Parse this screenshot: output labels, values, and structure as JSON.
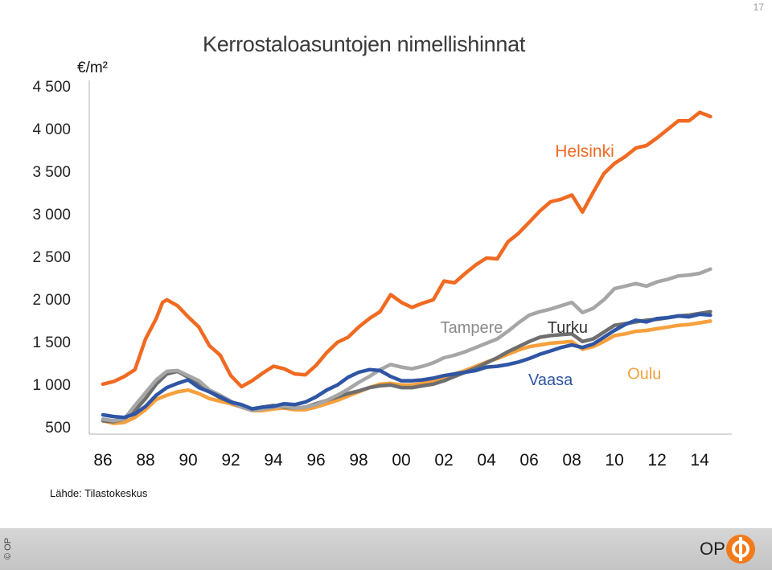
{
  "slide_number": "17",
  "footer": {
    "copyright": "© OP",
    "logo_text": "OP"
  },
  "colors": {
    "helsinki": "#f06a22",
    "tampere": "#a6a6a6",
    "turku": "#6e6e6e",
    "vaasa": "#2f55a4",
    "oulu": "#f7a03d",
    "footer_bg": "#cccccc",
    "logo_orange": "#f27a1a"
  },
  "chart_data": {
    "type": "line",
    "title": "Kerrostaloasuntojen nimellishinnat",
    "unit_label": "€/m²",
    "source": "Lähde: Tilastokeskus",
    "ylim": [
      500,
      4500
    ],
    "y_ticks": [
      "500",
      "1 000",
      "1 500",
      "2 000",
      "2 500",
      "3 000",
      "3 500",
      "4 000",
      "4 500"
    ],
    "y_tick_values": [
      500,
      1000,
      1500,
      2000,
      2500,
      3000,
      3500,
      4000,
      4500
    ],
    "xlim": [
      1986,
      2014.75
    ],
    "x_ticks": [
      "86",
      "88",
      "90",
      "92",
      "94",
      "96",
      "98",
      "00",
      "02",
      "04",
      "06",
      "08",
      "10",
      "12",
      "14"
    ],
    "x_tick_values": [
      1986,
      1988,
      1990,
      1992,
      1994,
      1996,
      1998,
      2000,
      2002,
      2004,
      2006,
      2008,
      2010,
      2012,
      2014
    ],
    "grid": false,
    "legend": "inline labels",
    "series": [
      {
        "name": "Helsinki",
        "color_key": "helsinki",
        "label_pos": [
          2008.6,
          3700
        ],
        "points": [
          [
            1986,
            1030
          ],
          [
            1986.5,
            1060
          ],
          [
            1987,
            1120
          ],
          [
            1987.5,
            1200
          ],
          [
            1988,
            1560
          ],
          [
            1988.5,
            1800
          ],
          [
            1988.8,
            1990
          ],
          [
            1989,
            2020
          ],
          [
            1989.5,
            1950
          ],
          [
            1990,
            1820
          ],
          [
            1990.5,
            1700
          ],
          [
            1991,
            1480
          ],
          [
            1991.5,
            1370
          ],
          [
            1992,
            1130
          ],
          [
            1992.5,
            1000
          ],
          [
            1993,
            1070
          ],
          [
            1993.5,
            1160
          ],
          [
            1994,
            1240
          ],
          [
            1994.5,
            1210
          ],
          [
            1995,
            1150
          ],
          [
            1995.5,
            1140
          ],
          [
            1996,
            1250
          ],
          [
            1996.5,
            1400
          ],
          [
            1997,
            1520
          ],
          [
            1997.5,
            1580
          ],
          [
            1998,
            1700
          ],
          [
            1998.5,
            1800
          ],
          [
            1999,
            1880
          ],
          [
            1999.5,
            2080
          ],
          [
            2000,
            1990
          ],
          [
            2000.5,
            1930
          ],
          [
            2001,
            1980
          ],
          [
            2001.5,
            2020
          ],
          [
            2002,
            2240
          ],
          [
            2002.5,
            2220
          ],
          [
            2003,
            2330
          ],
          [
            2003.5,
            2430
          ],
          [
            2004,
            2510
          ],
          [
            2004.5,
            2500
          ],
          [
            2005,
            2700
          ],
          [
            2005.5,
            2800
          ],
          [
            2006,
            2930
          ],
          [
            2006.5,
            3060
          ],
          [
            2007,
            3170
          ],
          [
            2007.5,
            3200
          ],
          [
            2008,
            3250
          ],
          [
            2008.5,
            3050
          ],
          [
            2009,
            3280
          ],
          [
            2009.5,
            3500
          ],
          [
            2010,
            3620
          ],
          [
            2010.5,
            3700
          ],
          [
            2011,
            3800
          ],
          [
            2011.5,
            3830
          ],
          [
            2012,
            3920
          ],
          [
            2012.5,
            4020
          ],
          [
            2013,
            4120
          ],
          [
            2013.5,
            4120
          ],
          [
            2014,
            4220
          ],
          [
            2014.5,
            4170
          ]
        ]
      },
      {
        "name": "Tampere",
        "color_key": "tampere",
        "label_pos": [
          2003.3,
          1630
        ],
        "points": [
          [
            1986,
            620
          ],
          [
            1986.5,
            600
          ],
          [
            1987,
            620
          ],
          [
            1987.5,
            780
          ],
          [
            1988,
            930
          ],
          [
            1988.5,
            1080
          ],
          [
            1989,
            1180
          ],
          [
            1989.5,
            1190
          ],
          [
            1990,
            1130
          ],
          [
            1990.5,
            1070
          ],
          [
            1991,
            960
          ],
          [
            1991.5,
            900
          ],
          [
            1992,
            830
          ],
          [
            1992.5,
            760
          ],
          [
            1993,
            720
          ],
          [
            1993.5,
            740
          ],
          [
            1994,
            760
          ],
          [
            1994.5,
            770
          ],
          [
            1995,
            750
          ],
          [
            1995.5,
            760
          ],
          [
            1996,
            790
          ],
          [
            1996.5,
            840
          ],
          [
            1997,
            900
          ],
          [
            1997.5,
            970
          ],
          [
            1998,
            1050
          ],
          [
            1998.5,
            1120
          ],
          [
            1999,
            1200
          ],
          [
            1999.5,
            1260
          ],
          [
            2000,
            1230
          ],
          [
            2000.5,
            1210
          ],
          [
            2001,
            1240
          ],
          [
            2001.5,
            1280
          ],
          [
            2002,
            1340
          ],
          [
            2002.5,
            1370
          ],
          [
            2003,
            1410
          ],
          [
            2003.5,
            1460
          ],
          [
            2004,
            1510
          ],
          [
            2004.5,
            1560
          ],
          [
            2005,
            1650
          ],
          [
            2005.5,
            1750
          ],
          [
            2006,
            1840
          ],
          [
            2006.5,
            1880
          ],
          [
            2007,
            1910
          ],
          [
            2007.5,
            1950
          ],
          [
            2008,
            1990
          ],
          [
            2008.5,
            1870
          ],
          [
            2009,
            1920
          ],
          [
            2009.5,
            2020
          ],
          [
            2010,
            2150
          ],
          [
            2010.5,
            2180
          ],
          [
            2011,
            2210
          ],
          [
            2011.5,
            2180
          ],
          [
            2012,
            2230
          ],
          [
            2012.5,
            2260
          ],
          [
            2013,
            2300
          ],
          [
            2013.5,
            2310
          ],
          [
            2014,
            2330
          ],
          [
            2014.5,
            2380
          ]
        ]
      },
      {
        "name": "Turku",
        "color_key": "turku",
        "label_pos": [
          2007.8,
          1630
        ],
        "points": [
          [
            1986,
            600
          ],
          [
            1986.5,
            590
          ],
          [
            1987,
            620
          ],
          [
            1987.5,
            720
          ],
          [
            1988,
            860
          ],
          [
            1988.5,
            1030
          ],
          [
            1989,
            1150
          ],
          [
            1989.5,
            1180
          ],
          [
            1990,
            1110
          ],
          [
            1990.5,
            1040
          ],
          [
            1991,
            940
          ],
          [
            1991.5,
            870
          ],
          [
            1992,
            820
          ],
          [
            1992.5,
            760
          ],
          [
            1993,
            740
          ],
          [
            1993.5,
            760
          ],
          [
            1994,
            780
          ],
          [
            1994.5,
            760
          ],
          [
            1995,
            750
          ],
          [
            1995.5,
            760
          ],
          [
            1996,
            800
          ],
          [
            1996.5,
            840
          ],
          [
            1997,
            880
          ],
          [
            1997.5,
            920
          ],
          [
            1998,
            950
          ],
          [
            1998.5,
            990
          ],
          [
            1999,
            1010
          ],
          [
            1999.5,
            1020
          ],
          [
            2000,
            990
          ],
          [
            2000.5,
            990
          ],
          [
            2001,
            1010
          ],
          [
            2001.5,
            1030
          ],
          [
            2002,
            1070
          ],
          [
            2002.5,
            1120
          ],
          [
            2003,
            1170
          ],
          [
            2003.5,
            1220
          ],
          [
            2004,
            1280
          ],
          [
            2004.5,
            1340
          ],
          [
            2005,
            1410
          ],
          [
            2005.5,
            1470
          ],
          [
            2006,
            1530
          ],
          [
            2006.5,
            1580
          ],
          [
            2007,
            1600
          ],
          [
            2007.5,
            1610
          ],
          [
            2008,
            1620
          ],
          [
            2008.5,
            1530
          ],
          [
            2009,
            1560
          ],
          [
            2009.5,
            1640
          ],
          [
            2010,
            1720
          ],
          [
            2010.5,
            1740
          ],
          [
            2011,
            1760
          ],
          [
            2011.5,
            1780
          ],
          [
            2012,
            1790
          ],
          [
            2012.5,
            1810
          ],
          [
            2013,
            1830
          ],
          [
            2013.5,
            1840
          ],
          [
            2014,
            1860
          ],
          [
            2014.5,
            1880
          ]
        ]
      },
      {
        "name": "Vaasa",
        "color_key": "vaasa",
        "label_pos": [
          2007.0,
          1020
        ],
        "points": [
          [
            1986,
            670
          ],
          [
            1986.5,
            650
          ],
          [
            1987,
            640
          ],
          [
            1987.5,
            680
          ],
          [
            1988,
            770
          ],
          [
            1988.5,
            900
          ],
          [
            1989,
            990
          ],
          [
            1989.5,
            1040
          ],
          [
            1990,
            1080
          ],
          [
            1990.5,
            990
          ],
          [
            1991,
            940
          ],
          [
            1991.5,
            880
          ],
          [
            1992,
            820
          ],
          [
            1992.5,
            790
          ],
          [
            1993,
            740
          ],
          [
            1993.5,
            760
          ],
          [
            1994,
            770
          ],
          [
            1994.5,
            800
          ],
          [
            1995,
            790
          ],
          [
            1995.5,
            820
          ],
          [
            1996,
            880
          ],
          [
            1996.5,
            960
          ],
          [
            1997,
            1020
          ],
          [
            1997.5,
            1110
          ],
          [
            1998,
            1170
          ],
          [
            1998.5,
            1200
          ],
          [
            1999,
            1190
          ],
          [
            1999.5,
            1120
          ],
          [
            2000,
            1070
          ],
          [
            2000.5,
            1070
          ],
          [
            2001,
            1080
          ],
          [
            2001.5,
            1100
          ],
          [
            2002,
            1130
          ],
          [
            2002.5,
            1150
          ],
          [
            2003,
            1170
          ],
          [
            2003.5,
            1190
          ],
          [
            2004,
            1230
          ],
          [
            2004.5,
            1240
          ],
          [
            2005,
            1260
          ],
          [
            2005.5,
            1290
          ],
          [
            2006,
            1330
          ],
          [
            2006.5,
            1380
          ],
          [
            2007,
            1420
          ],
          [
            2007.5,
            1460
          ],
          [
            2008,
            1490
          ],
          [
            2008.5,
            1460
          ],
          [
            2009,
            1500
          ],
          [
            2009.5,
            1580
          ],
          [
            2010,
            1660
          ],
          [
            2010.5,
            1730
          ],
          [
            2011,
            1780
          ],
          [
            2011.5,
            1760
          ],
          [
            2012,
            1800
          ],
          [
            2012.5,
            1810
          ],
          [
            2013,
            1830
          ],
          [
            2013.5,
            1820
          ],
          [
            2014,
            1850
          ],
          [
            2014.5,
            1840
          ]
        ]
      },
      {
        "name": "Oulu",
        "color_key": "oulu",
        "label_pos": [
          2011.4,
          1090
        ],
        "points": [
          [
            1986,
            600
          ],
          [
            1986.5,
            570
          ],
          [
            1987,
            580
          ],
          [
            1987.5,
            640
          ],
          [
            1988,
            730
          ],
          [
            1988.5,
            850
          ],
          [
            1989,
            900
          ],
          [
            1989.5,
            940
          ],
          [
            1990,
            960
          ],
          [
            1990.5,
            920
          ],
          [
            1991,
            860
          ],
          [
            1991.5,
            830
          ],
          [
            1992,
            800
          ],
          [
            1992.5,
            760
          ],
          [
            1993,
            720
          ],
          [
            1993.5,
            720
          ],
          [
            1994,
            740
          ],
          [
            1994.5,
            750
          ],
          [
            1995,
            730
          ],
          [
            1995.5,
            730
          ],
          [
            1996,
            760
          ],
          [
            1996.5,
            800
          ],
          [
            1997,
            840
          ],
          [
            1997.5,
            890
          ],
          [
            1998,
            940
          ],
          [
            1998.5,
            990
          ],
          [
            1999,
            1030
          ],
          [
            1999.5,
            1040
          ],
          [
            2000,
            1020
          ],
          [
            2000.5,
            1020
          ],
          [
            2001,
            1040
          ],
          [
            2001.5,
            1070
          ],
          [
            2002,
            1110
          ],
          [
            2002.5,
            1150
          ],
          [
            2003,
            1190
          ],
          [
            2003.5,
            1240
          ],
          [
            2004,
            1290
          ],
          [
            2004.5,
            1330
          ],
          [
            2005,
            1380
          ],
          [
            2005.5,
            1430
          ],
          [
            2006,
            1470
          ],
          [
            2006.5,
            1490
          ],
          [
            2007,
            1510
          ],
          [
            2007.5,
            1520
          ],
          [
            2008,
            1530
          ],
          [
            2008.5,
            1440
          ],
          [
            2009,
            1470
          ],
          [
            2009.5,
            1530
          ],
          [
            2010,
            1600
          ],
          [
            2010.5,
            1620
          ],
          [
            2011,
            1650
          ],
          [
            2011.5,
            1660
          ],
          [
            2012,
            1680
          ],
          [
            2012.5,
            1700
          ],
          [
            2013,
            1720
          ],
          [
            2013.5,
            1730
          ],
          [
            2014,
            1750
          ],
          [
            2014.5,
            1770
          ]
        ]
      }
    ]
  }
}
